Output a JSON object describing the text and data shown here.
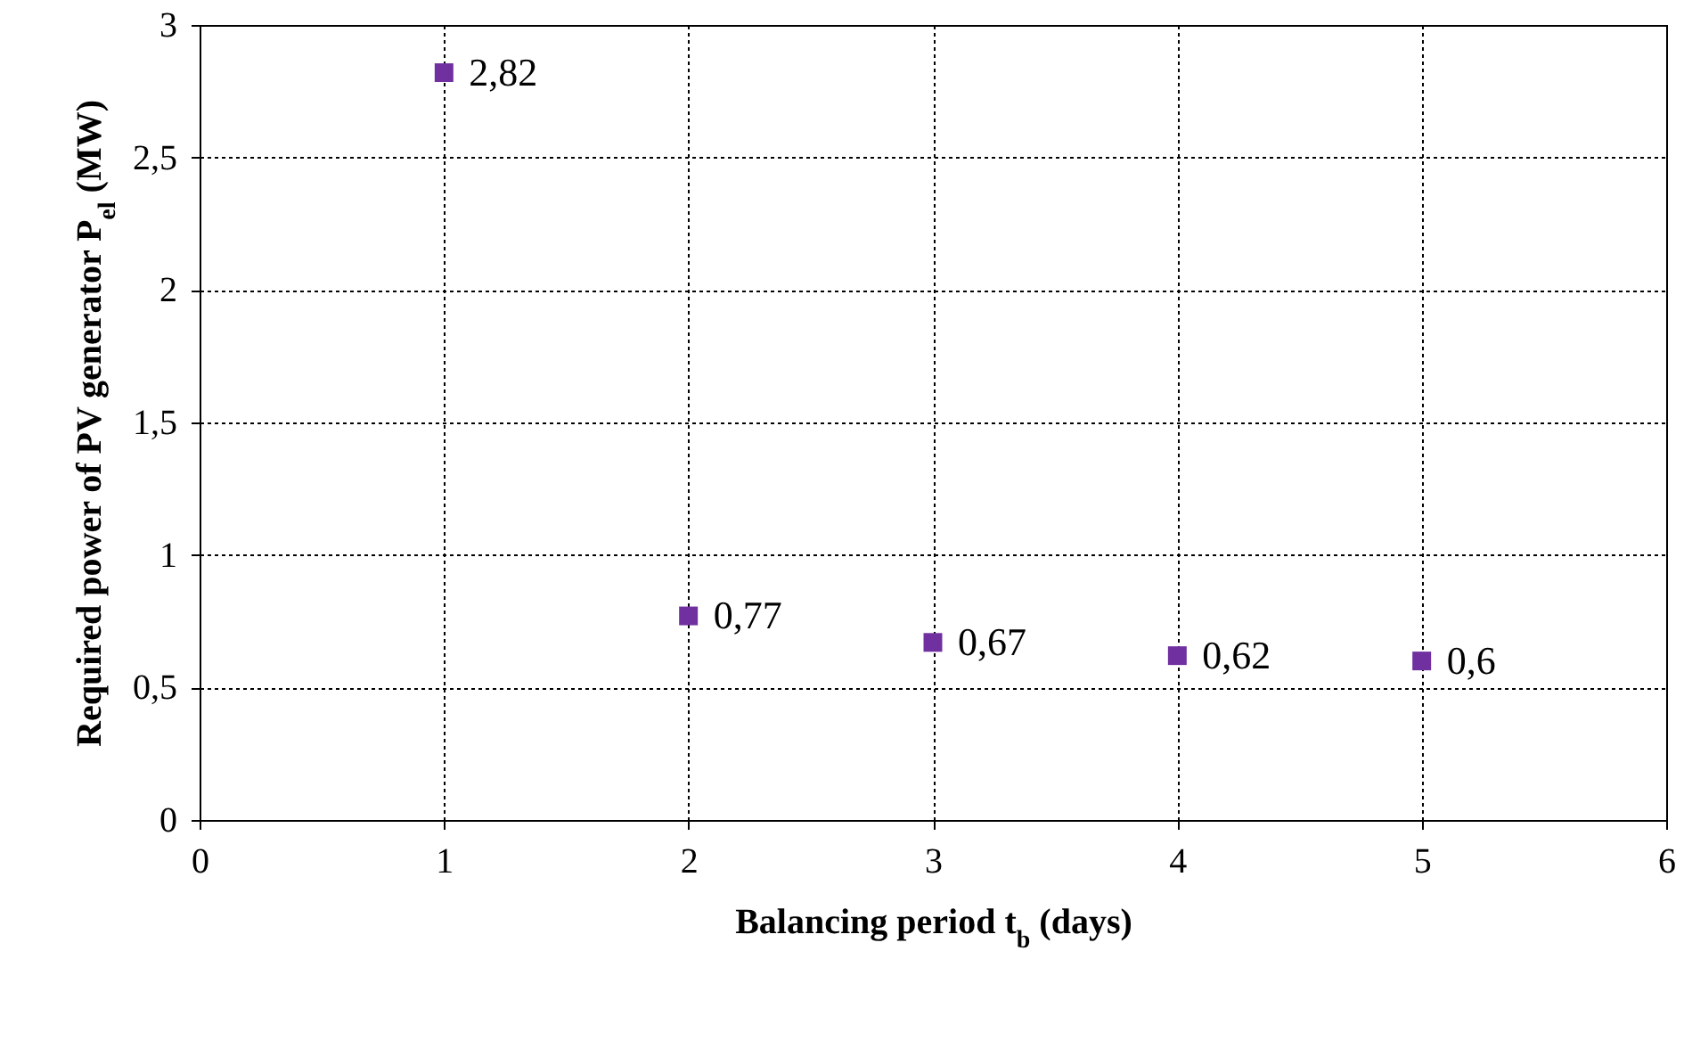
{
  "chart_data": {
    "type": "scatter",
    "xlabel": "Balancing period t$_{b}$ (days)",
    "ylabel": "Required power of PV generator P$_{el}$ (MW)",
    "x": [
      1,
      2,
      3,
      4,
      5
    ],
    "series": [
      {
        "color": "#7030a0",
        "values": [
          2.82,
          0.77,
          0.67,
          0.62,
          0.6
        ],
        "value_labels": [
          "2,82",
          "0,77",
          "0,67",
          "0,62",
          "0,6"
        ]
      }
    ],
    "xlim": [
      0,
      6
    ],
    "xticks": [
      0,
      1,
      2,
      3,
      4,
      5,
      6
    ],
    "ylim": [
      0,
      3
    ],
    "yticks": [
      0,
      {
        "value": 0.5,
        "label": "0,5"
      },
      1,
      {
        "value": 1.5,
        "label": "1,5"
      },
      2,
      {
        "value": 2.5,
        "label": "2,5"
      },
      3
    ],
    "grid": true,
    "marker": "square"
  }
}
